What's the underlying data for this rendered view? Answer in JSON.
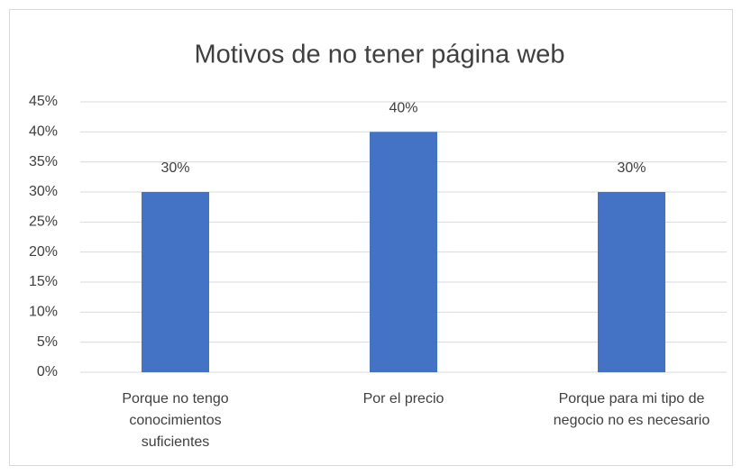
{
  "chart_data": {
    "type": "bar",
    "title": "Motivos de no tener página web",
    "categories": [
      "Porque no tengo conocimientos suficientes",
      "Por el precio",
      "Porque para mi tipo de negocio no es necesario"
    ],
    "values": [
      30,
      40,
      30
    ],
    "value_labels": [
      "30%",
      "40%",
      "30%"
    ],
    "color": "#4472c4",
    "ylim": [
      0,
      45
    ],
    "yticks": [
      {
        "value": 0,
        "label": "0%"
      },
      {
        "value": 5,
        "label": "5%"
      },
      {
        "value": 10,
        "label": "10%"
      },
      {
        "value": 15,
        "label": "15%"
      },
      {
        "value": 20,
        "label": "20%"
      },
      {
        "value": 25,
        "label": "25%"
      },
      {
        "value": 30,
        "label": "30%"
      },
      {
        "value": 35,
        "label": "35%"
      },
      {
        "value": 40,
        "label": "40%"
      },
      {
        "value": 45,
        "label": "45%"
      }
    ],
    "grid": true
  }
}
